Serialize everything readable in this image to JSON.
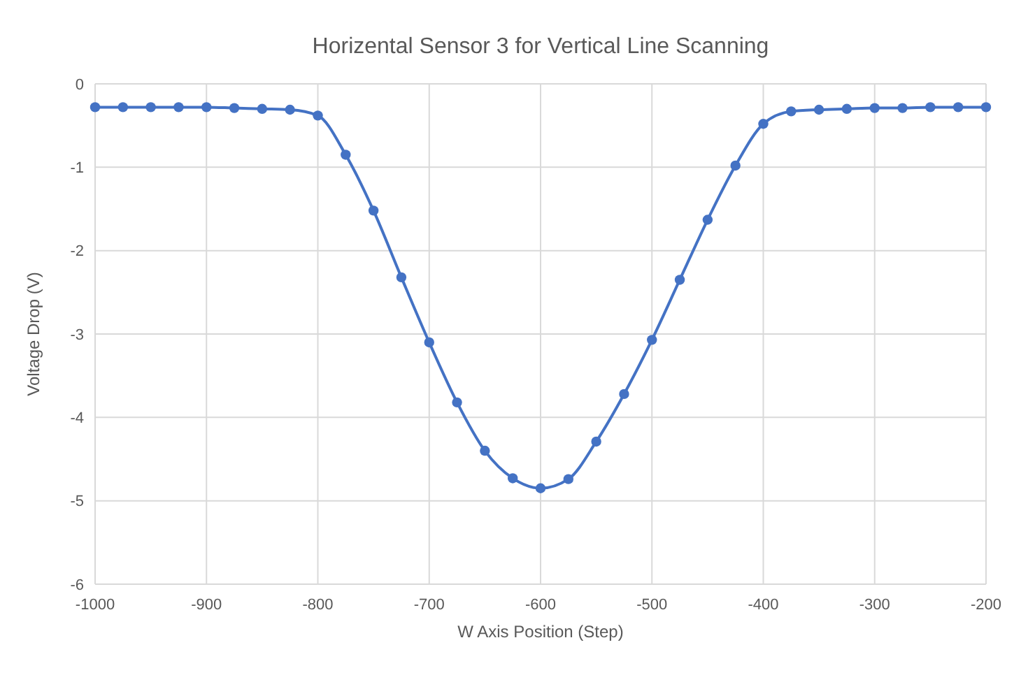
{
  "chart_data": {
    "type": "line",
    "title": "Horizental Sensor 3 for Vertical Line Scanning",
    "xlabel": "W Axis Position (Step)",
    "ylabel": "Voltage Drop (V)",
    "x": [
      -1000,
      -975,
      -950,
      -925,
      -900,
      -875,
      -850,
      -825,
      -800,
      -775,
      -750,
      -725,
      -700,
      -675,
      -650,
      -625,
      -600,
      -575,
      -550,
      -525,
      -500,
      -475,
      -450,
      -425,
      -400,
      -375,
      -350,
      -325,
      -300,
      -275,
      -250,
      -225,
      -200
    ],
    "series": [
      {
        "color": "#4472c4",
        "values": [
          -0.28,
          -0.28,
          -0.28,
          -0.28,
          -0.28,
          -0.29,
          -0.3,
          -0.31,
          -0.38,
          -0.85,
          -1.52,
          -2.32,
          -3.1,
          -3.82,
          -4.4,
          -4.73,
          -4.85,
          -4.74,
          -4.29,
          -3.72,
          -3.07,
          -2.35,
          -1.63,
          -0.98,
          -0.48,
          -0.33,
          -0.31,
          -0.3,
          -0.29,
          -0.29,
          -0.28,
          -0.28,
          -0.28
        ]
      }
    ],
    "xlim": [
      -1000,
      -200
    ],
    "xticks": [
      -1000,
      -900,
      -800,
      -700,
      -600,
      -500,
      -400,
      -300,
      -200
    ],
    "ylim": [
      -6,
      0
    ],
    "yticks": [
      -6,
      -5,
      -4,
      -3,
      -2,
      -1,
      0
    ],
    "grid": true,
    "marker": "circle",
    "line_style": "solid"
  }
}
